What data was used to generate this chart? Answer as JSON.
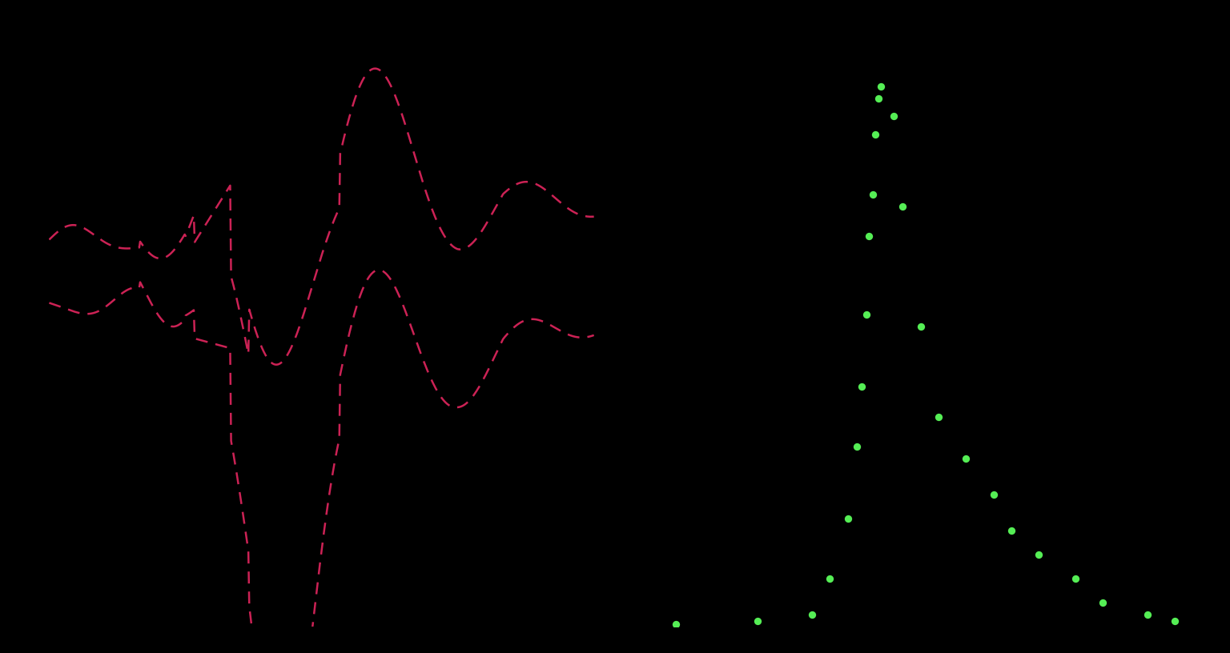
{
  "background_color": "#000000",
  "fig_width": 15.36,
  "fig_height": 8.16,
  "left_panel": {
    "xlim": [
      0,
      60
    ],
    "ylim": [
      -150,
      100
    ],
    "bound_color": "#cc2255",
    "bound_linestyle": "dashed",
    "bound_linewidth": 1.8
  },
  "right_panel": {
    "xlim": [
      0,
      60
    ],
    "ylim": [
      0,
      10000
    ],
    "dot_color": "#55ee55",
    "dot_size": 45
  },
  "green_x": [
    3,
    12,
    18,
    20,
    22,
    23,
    23.5,
    24,
    24.3,
    24.7,
    25,
    25.3,
    25.6,
    27,
    28,
    30,
    32,
    35,
    38,
    40,
    43,
    47,
    50,
    55,
    58
  ],
  "green_y": [
    50,
    100,
    200,
    800,
    1800,
    3000,
    4000,
    5200,
    6500,
    7200,
    8200,
    8800,
    9000,
    8500,
    7000,
    5000,
    3500,
    2800,
    2200,
    1600,
    1200,
    800,
    400,
    200,
    100
  ]
}
